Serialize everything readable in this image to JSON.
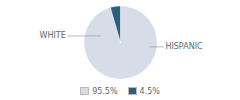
{
  "chart_data": {
    "type": "pie",
    "categories": [
      "WHITE",
      "HISPANIC"
    ],
    "values": [
      95.5,
      4.5
    ],
    "value_labels": [
      "95.5%",
      "4.5%"
    ],
    "colors": [
      "#d6dde8",
      "#2e5f7a"
    ],
    "legend": "bottom"
  }
}
